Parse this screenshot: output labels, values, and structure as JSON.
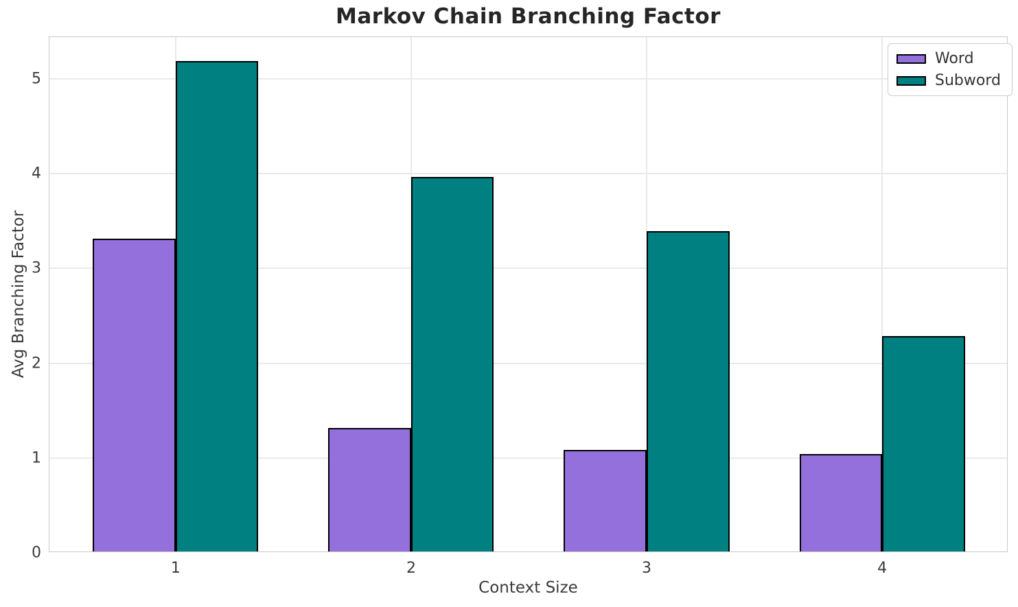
{
  "chart_data": {
    "type": "bar",
    "title": "Markov Chain Branching Factor",
    "xlabel": "Context Size",
    "ylabel": "Avg Branching Factor",
    "categories": [
      "1",
      "2",
      "3",
      "4"
    ],
    "series": [
      {
        "name": "Word",
        "color": "#9370DB",
        "values": [
          3.3,
          1.3,
          1.07,
          1.03
        ]
      },
      {
        "name": "Subword",
        "color": "#008080",
        "values": [
          5.17,
          3.95,
          3.38,
          2.27
        ]
      }
    ],
    "ylim": [
      0,
      5.44
    ],
    "yticks": [
      0,
      1,
      2,
      3,
      4,
      5
    ],
    "grid": true,
    "legend_position": "upper right",
    "bar_edge_color": "#000000",
    "background_color": "#ffffff"
  }
}
